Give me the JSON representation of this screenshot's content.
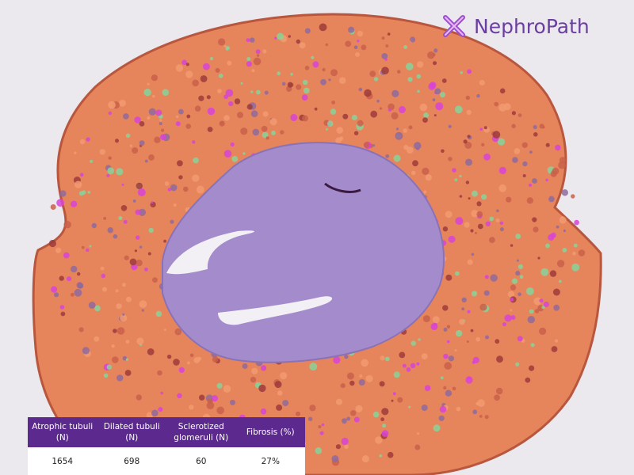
{
  "brand": "NephroPath",
  "table": {
    "headers": [
      "Atrophic tubuli (N)",
      "Dilated tubuli (N)",
      "Sclerotized glomeruli (N)",
      "Fibrosis (%)"
    ],
    "rows": [
      [
        "1654",
        "698",
        "60",
        "27%"
      ]
    ]
  }
}
